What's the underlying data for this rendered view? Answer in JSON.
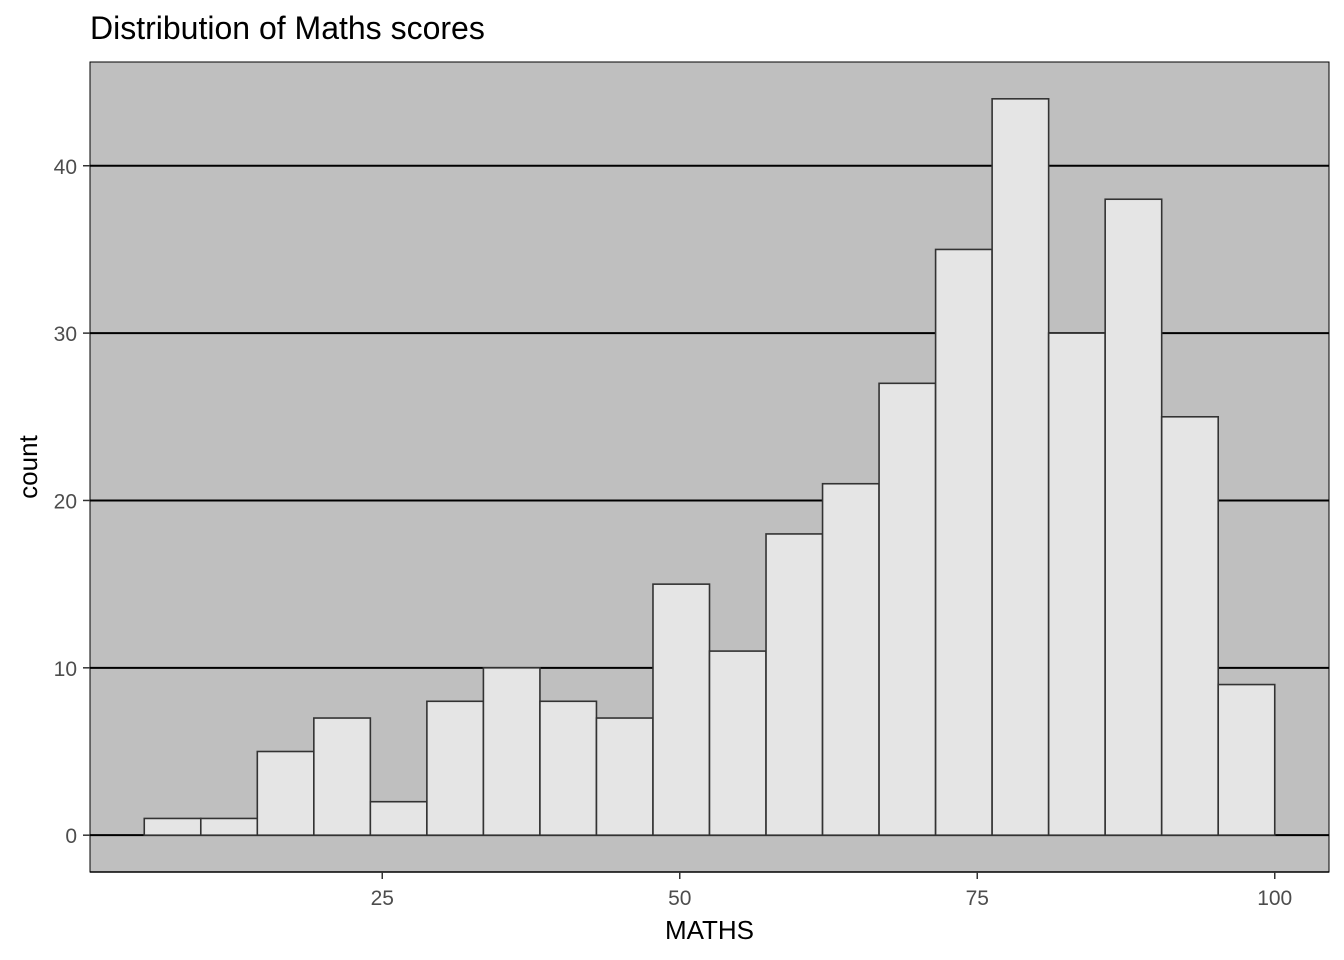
{
  "chart_data": {
    "type": "bar",
    "title": "Distribution of Maths scores",
    "xlabel": "MATHS",
    "ylabel": "count",
    "bin_width": 4.75,
    "bins": [
      {
        "x_start": 5.0,
        "x_end": 9.75,
        "count": 1
      },
      {
        "x_start": 9.75,
        "x_end": 14.5,
        "count": 1
      },
      {
        "x_start": 14.5,
        "x_end": 19.25,
        "count": 5
      },
      {
        "x_start": 19.25,
        "x_end": 24.0,
        "count": 7
      },
      {
        "x_start": 24.0,
        "x_end": 28.75,
        "count": 2
      },
      {
        "x_start": 28.75,
        "x_end": 33.5,
        "count": 8
      },
      {
        "x_start": 33.5,
        "x_end": 38.25,
        "count": 10
      },
      {
        "x_start": 38.25,
        "x_end": 43.0,
        "count": 8
      },
      {
        "x_start": 43.0,
        "x_end": 47.75,
        "count": 7
      },
      {
        "x_start": 47.75,
        "x_end": 52.5,
        "count": 15
      },
      {
        "x_start": 52.5,
        "x_end": 57.25,
        "count": 11
      },
      {
        "x_start": 57.25,
        "x_end": 62.0,
        "count": 18
      },
      {
        "x_start": 62.0,
        "x_end": 66.75,
        "count": 21
      },
      {
        "x_start": 66.75,
        "x_end": 71.5,
        "count": 27
      },
      {
        "x_start": 71.5,
        "x_end": 76.25,
        "count": 35
      },
      {
        "x_start": 76.25,
        "x_end": 81.0,
        "count": 44
      },
      {
        "x_start": 81.0,
        "x_end": 85.75,
        "count": 30
      },
      {
        "x_start": 85.75,
        "x_end": 90.5,
        "count": 38
      },
      {
        "x_start": 90.5,
        "x_end": 95.25,
        "count": 25
      },
      {
        "x_start": 95.25,
        "x_end": 100.0,
        "count": 9
      }
    ],
    "xlim": [
      0.44,
      104.56
    ],
    "ylim": [
      -2.2,
      46.2
    ],
    "x_ticks": [
      25,
      50,
      75,
      100
    ],
    "y_ticks": [
      0,
      10,
      20,
      30,
      40
    ],
    "x_tick_labels": [
      "25",
      "50",
      "75",
      "100"
    ],
    "y_tick_labels": [
      "0",
      "10",
      "20",
      "30",
      "40"
    ],
    "grid": "horizontal major lines",
    "legend": "none",
    "colors": {
      "panel_background": "#bfbfbf",
      "bar_fill": "#e5e5e5",
      "bar_outline": "#333333",
      "grid_line": "#000000",
      "axis_line": "#000000",
      "tick_text": "#4d4d4d"
    }
  }
}
